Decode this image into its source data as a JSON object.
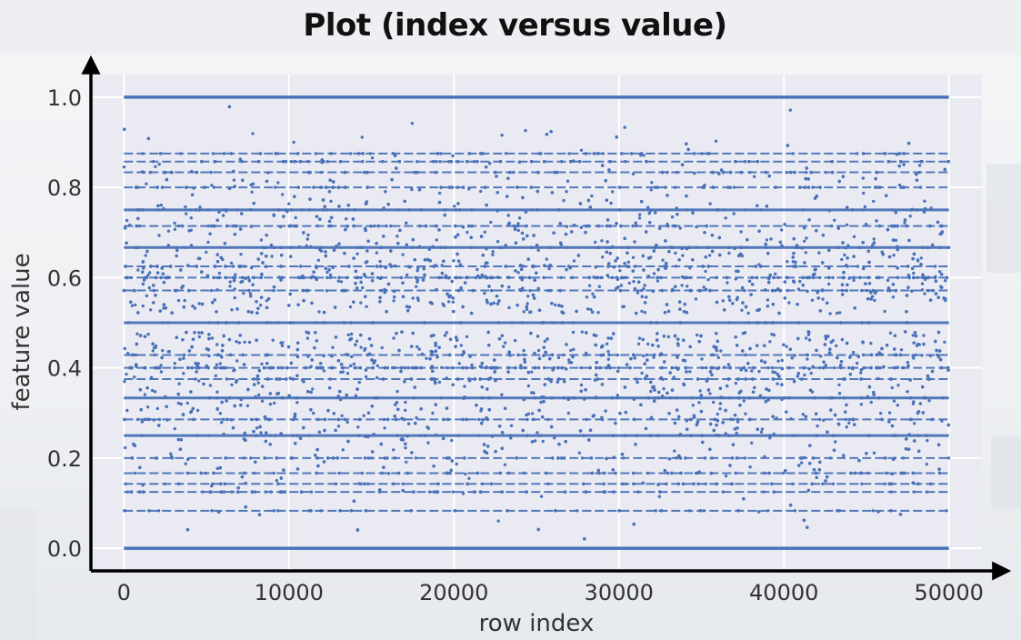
{
  "chart_data": {
    "type": "scatter",
    "title": "Plot (index versus value)",
    "xlabel": "row index",
    "ylabel": "feature value",
    "xlim": [
      -2000,
      52000
    ],
    "ylim": [
      -0.05,
      1.05
    ],
    "xticks": [
      0,
      10000,
      20000,
      30000,
      40000,
      50000
    ],
    "xtick_labels": [
      "0",
      "10000",
      "20000",
      "30000",
      "40000",
      "50000"
    ],
    "yticks": [
      0.0,
      0.2,
      0.4,
      0.6,
      0.8,
      1.0
    ],
    "ytick_labels": [
      "0.0",
      "0.2",
      "0.4",
      "0.6",
      "0.8",
      "1.0"
    ],
    "grid": true,
    "point_color": "#4a72b8",
    "plot_background": "#eaeaf2",
    "n_points_shown": 50000,
    "x_range": [
      0,
      50000
    ],
    "dense_value_lines": [
      0.0,
      0.0833,
      0.125,
      0.1429,
      0.1667,
      0.2,
      0.25,
      0.2857,
      0.3333,
      0.375,
      0.4,
      0.4286,
      0.5,
      0.5714,
      0.6,
      0.625,
      0.6667,
      0.7143,
      0.75,
      0.8,
      0.8333,
      0.8571,
      0.875,
      1.0
    ],
    "distribution": "bimodal, peaks near 0.6 and 0.4, sparse near 0.05 and 0.95, gap around 0.5 except the solid line"
  }
}
